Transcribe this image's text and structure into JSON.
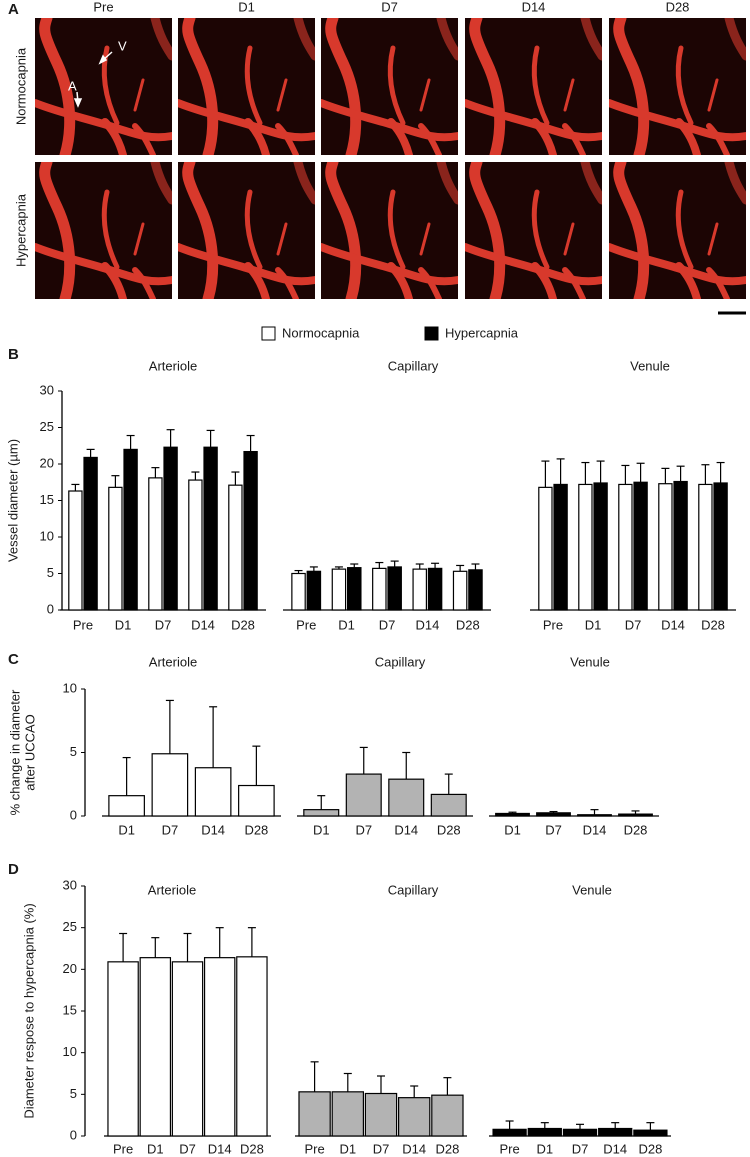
{
  "panel_a": {
    "label": "A",
    "columns": [
      "Pre",
      "D1",
      "D7",
      "D14",
      "D28"
    ],
    "rows": [
      "Normocapnia",
      "Hypercapnia"
    ],
    "arrow_labels": [
      "V",
      "A"
    ]
  },
  "chart_data": [
    {
      "type": "bar",
      "panel": "B",
      "ylabel": "Vessel diameter (µm)",
      "ylim": [
        0,
        30
      ],
      "yticks": [
        0,
        5,
        10,
        15,
        20,
        25,
        30
      ],
      "series": [
        {
          "name": "Normocapnia",
          "color": "#ffffff"
        },
        {
          "name": "Hypercapnia",
          "color": "#000000"
        }
      ],
      "groups": [
        {
          "name": "Arteriole",
          "categories": [
            "Pre",
            "D1",
            "D7",
            "D14",
            "D28"
          ],
          "series": [
            {
              "values": [
                16.3,
                16.8,
                18.1,
                17.8,
                17.1
              ],
              "errors": [
                0.9,
                1.6,
                1.4,
                1.1,
                1.8
              ]
            },
            {
              "values": [
                20.9,
                22.0,
                22.3,
                22.3,
                21.7
              ],
              "errors": [
                1.1,
                1.9,
                2.4,
                2.3,
                2.2
              ]
            }
          ]
        },
        {
          "name": "Capillary",
          "categories": [
            "Pre",
            "D1",
            "D7",
            "D14",
            "D28"
          ],
          "series": [
            {
              "values": [
                5.0,
                5.6,
                5.7,
                5.6,
                5.3
              ],
              "errors": [
                0.4,
                0.3,
                0.8,
                0.7,
                0.8
              ]
            },
            {
              "values": [
                5.3,
                5.8,
                5.9,
                5.7,
                5.5
              ],
              "errors": [
                0.6,
                0.5,
                0.8,
                0.7,
                0.8
              ]
            }
          ]
        },
        {
          "name": "Venule",
          "categories": [
            "Pre",
            "D1",
            "D7",
            "D14",
            "D28"
          ],
          "series": [
            {
              "values": [
                16.8,
                17.2,
                17.2,
                17.3,
                17.2
              ],
              "errors": [
                3.6,
                3.0,
                2.6,
                2.1,
                2.7
              ]
            },
            {
              "values": [
                17.2,
                17.4,
                17.5,
                17.6,
                17.4
              ],
              "errors": [
                3.5,
                3.0,
                2.6,
                2.1,
                2.8
              ]
            }
          ]
        }
      ]
    },
    {
      "type": "bar",
      "panel": "C",
      "ylabel": [
        "% change in diameter",
        "after UCCAO"
      ],
      "ylim": [
        0,
        10
      ],
      "yticks": [
        0,
        5,
        10
      ],
      "groups": [
        {
          "name": "Arteriole",
          "color": "#ffffff",
          "categories": [
            "D1",
            "D7",
            "D14",
            "D28"
          ],
          "series": [
            {
              "values": [
                1.6,
                4.9,
                3.8,
                2.4
              ],
              "errors": [
                3.0,
                4.2,
                4.8,
                3.1
              ]
            }
          ]
        },
        {
          "name": "Capillary",
          "color": "#b3b3b3",
          "categories": [
            "D1",
            "D7",
            "D14",
            "D28"
          ],
          "series": [
            {
              "values": [
                0.5,
                3.3,
                2.9,
                1.7
              ],
              "errors": [
                1.1,
                2.1,
                2.1,
                1.6
              ]
            }
          ]
        },
        {
          "name": "Venule",
          "color": "#000000",
          "categories": [
            "D1",
            "D7",
            "D14",
            "D28"
          ],
          "series": [
            {
              "values": [
                0.2,
                0.25,
                0.1,
                0.15
              ],
              "errors": [
                0.1,
                0.1,
                0.4,
                0.25
              ]
            }
          ]
        }
      ]
    },
    {
      "type": "bar",
      "panel": "D",
      "ylabel": "Diameter respose to hypercapnia (%)",
      "ylim": [
        0,
        30
      ],
      "yticks": [
        0,
        5,
        10,
        15,
        20,
        25,
        30
      ],
      "groups": [
        {
          "name": "Arteriole",
          "color": "#ffffff",
          "categories": [
            "Pre",
            "D1",
            "D7",
            "D14",
            "D28"
          ],
          "series": [
            {
              "values": [
                20.9,
                21.4,
                20.9,
                21.4,
                21.5
              ],
              "errors": [
                3.4,
                2.4,
                3.4,
                3.6,
                3.5
              ]
            }
          ]
        },
        {
          "name": "Capillary",
          "color": "#b3b3b3",
          "categories": [
            "Pre",
            "D1",
            "D7",
            "D14",
            "D28"
          ],
          "series": [
            {
              "values": [
                5.3,
                5.3,
                5.1,
                4.6,
                4.9
              ],
              "errors": [
                3.6,
                2.2,
                2.1,
                1.4,
                2.1
              ]
            }
          ]
        },
        {
          "name": "Venule",
          "color": "#000000",
          "categories": [
            "Pre",
            "D1",
            "D7",
            "D14",
            "D28"
          ],
          "series": [
            {
              "values": [
                0.8,
                0.9,
                0.8,
                0.9,
                0.7
              ],
              "errors": [
                1.0,
                0.7,
                0.6,
                0.7,
                0.9
              ]
            }
          ]
        }
      ]
    }
  ]
}
